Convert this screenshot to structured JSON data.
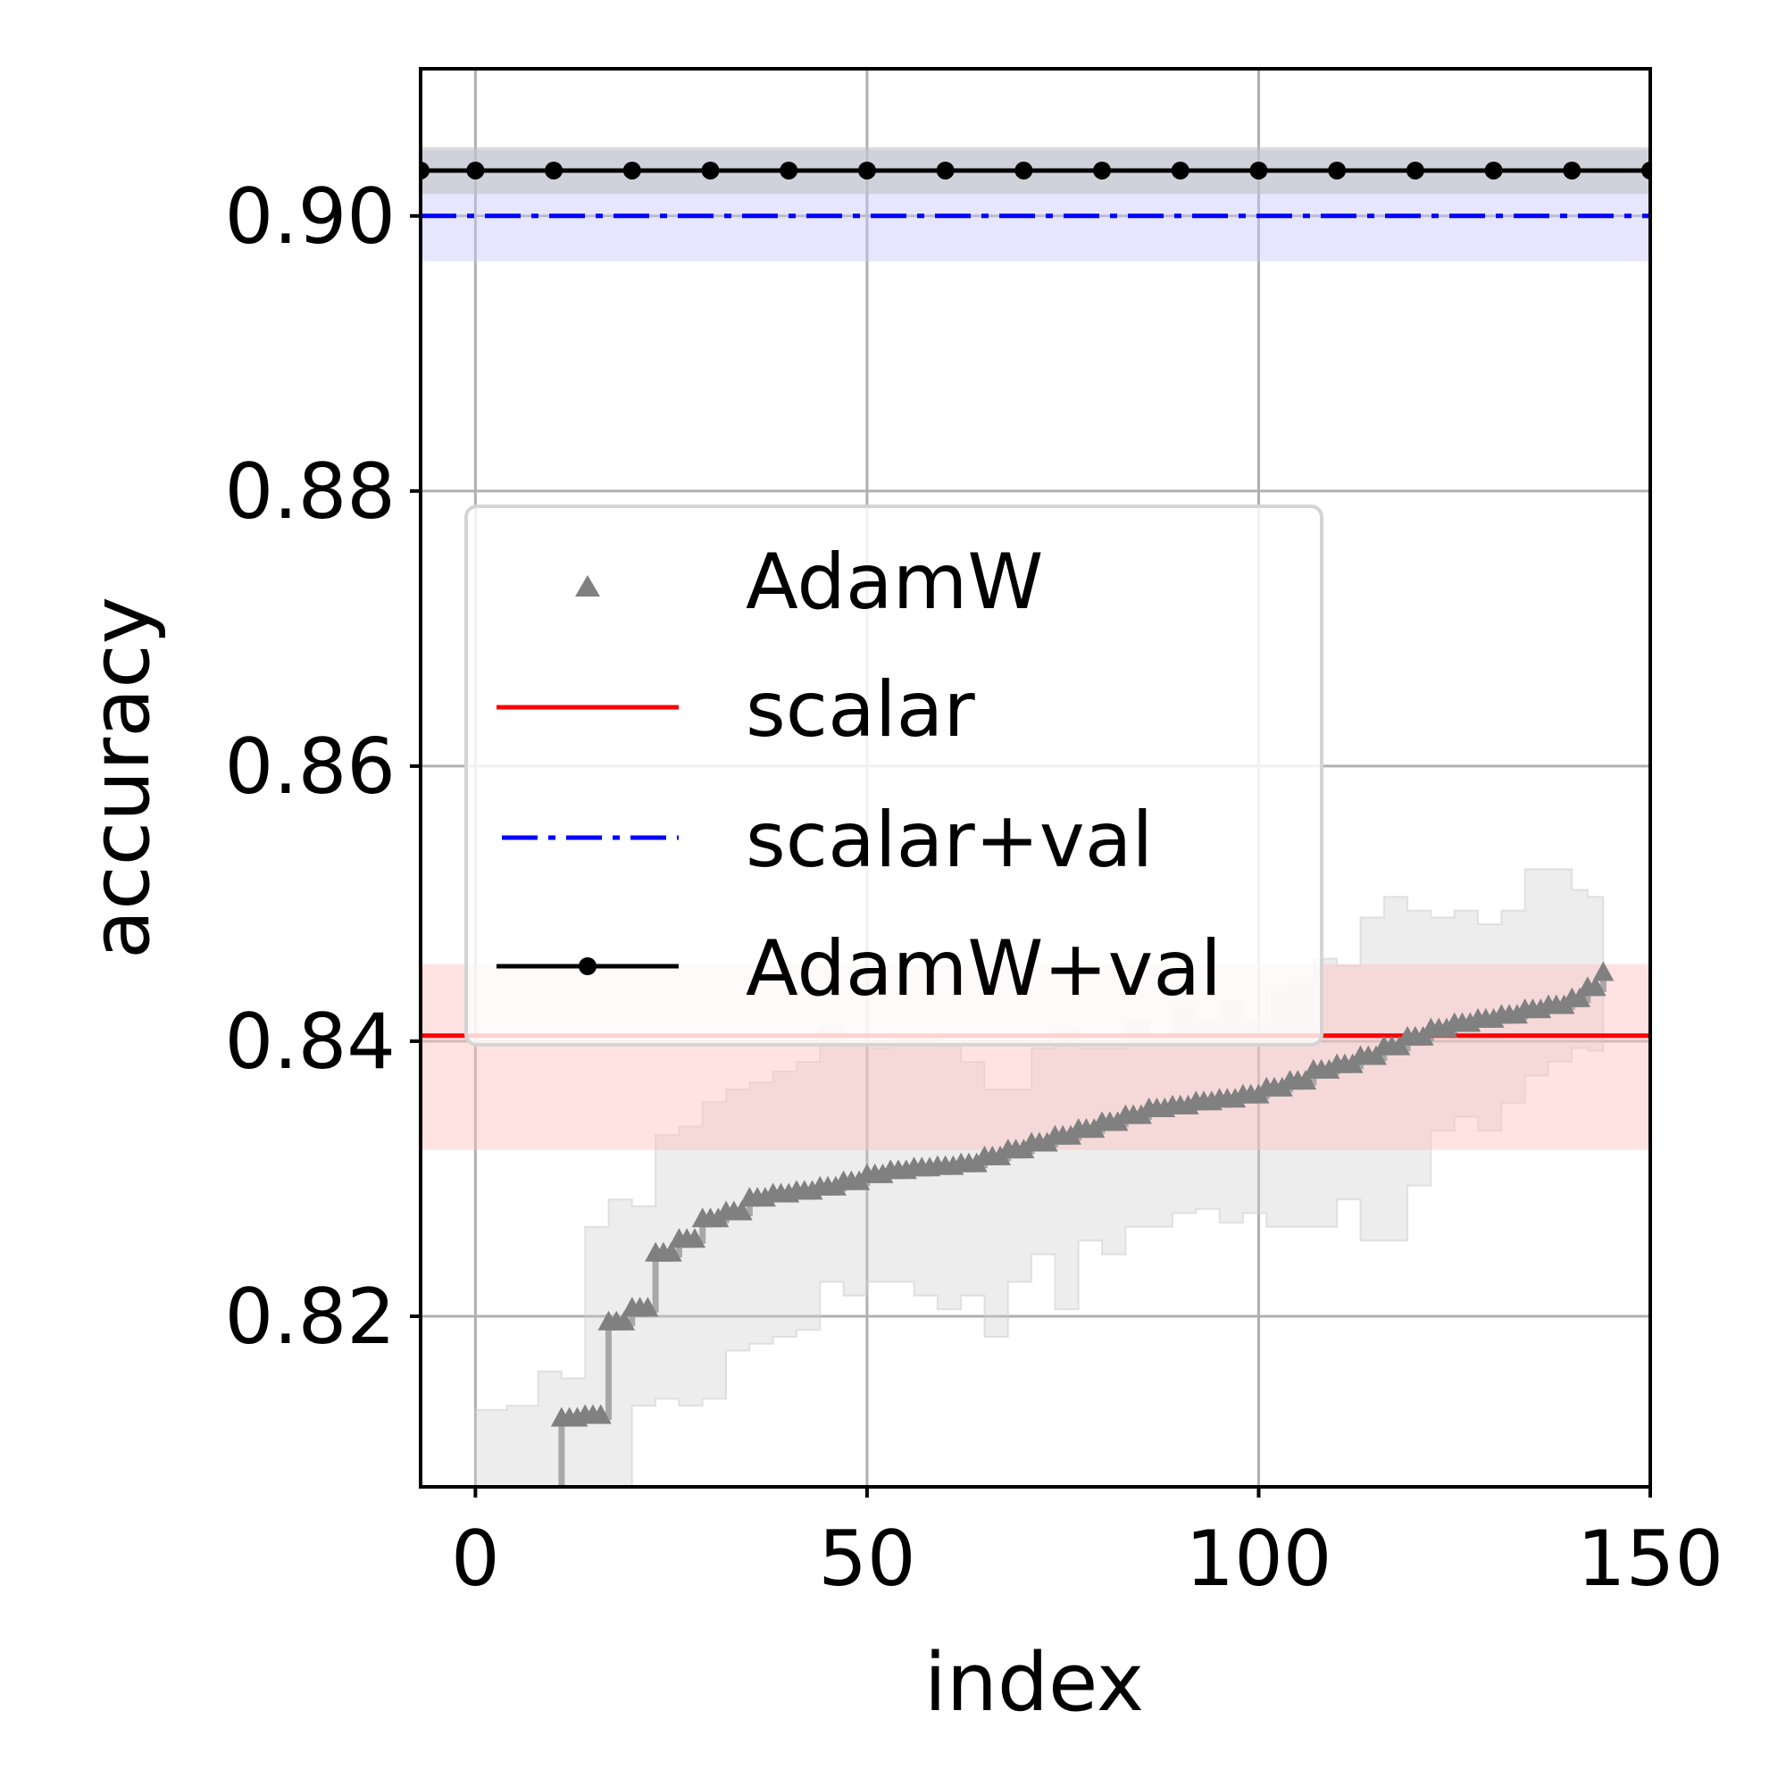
{
  "chart_data": {
    "type": "line",
    "xlabel": "index",
    "ylabel": "accuracy",
    "xlim": [
      -7,
      150
    ],
    "ylim": [
      0.8076,
      0.9107
    ],
    "xticks": [
      0,
      50,
      100,
      150
    ],
    "yticks": [
      0.82,
      0.84,
      0.86,
      0.88,
      0.9
    ],
    "xtick_labels": [
      "0",
      "50",
      "100",
      "150"
    ],
    "ytick_labels": [
      "0.82",
      "0.84",
      "0.86",
      "0.88",
      "0.90"
    ],
    "grid": true,
    "legend_position": "center-left",
    "series": [
      {
        "name": "AdamW",
        "kind": "markers-triangle",
        "color": "#808080",
        "band_color": "#cccccc",
        "x": [
          0,
          4,
          8,
          11,
          14,
          17,
          20,
          23,
          26,
          29,
          32,
          35,
          38,
          41,
          44,
          47,
          50,
          53,
          56,
          59,
          62,
          65,
          68,
          71,
          74,
          77,
          80,
          83,
          86,
          89,
          92,
          95,
          98,
          101,
          104,
          107,
          110,
          113,
          116,
          119,
          122,
          125,
          128,
          131,
          134,
          137,
          140,
          142,
          144
        ],
        "values": [
          0.806,
          0.8062,
          0.8065,
          0.8125,
          0.8127,
          0.8195,
          0.8205,
          0.8245,
          0.8255,
          0.827,
          0.8275,
          0.8285,
          0.8288,
          0.829,
          0.8293,
          0.8297,
          0.8302,
          0.8305,
          0.8307,
          0.8308,
          0.831,
          0.8315,
          0.832,
          0.8325,
          0.833,
          0.8335,
          0.834,
          0.8345,
          0.835,
          0.8352,
          0.8355,
          0.8357,
          0.836,
          0.8365,
          0.837,
          0.8378,
          0.8382,
          0.8388,
          0.8395,
          0.8402,
          0.8408,
          0.8412,
          0.8415,
          0.8418,
          0.8422,
          0.8425,
          0.843,
          0.8438,
          0.8449
        ],
        "upper": [
          0.8132,
          0.8135,
          0.816,
          0.8155,
          0.8265,
          0.8285,
          0.828,
          0.8332,
          0.8338,
          0.8356,
          0.8365,
          0.837,
          0.8378,
          0.8385,
          0.841,
          0.84,
          0.8395,
          0.8405,
          0.8405,
          0.84,
          0.8385,
          0.8365,
          0.8365,
          0.8395,
          0.841,
          0.8395,
          0.8395,
          0.8415,
          0.8405,
          0.8425,
          0.8415,
          0.843,
          0.8415,
          0.844,
          0.8445,
          0.846,
          0.8455,
          0.849,
          0.8505,
          0.8495,
          0.849,
          0.8495,
          0.8485,
          0.8495,
          0.8525,
          0.8525,
          0.851,
          0.8505,
          0.8505
        ],
        "lower": [
          0.7985,
          0.7988,
          0.799,
          0.7995,
          0.7998,
          0.8075,
          0.8135,
          0.814,
          0.8135,
          0.814,
          0.8175,
          0.818,
          0.8185,
          0.819,
          0.8225,
          0.8215,
          0.8225,
          0.8225,
          0.8215,
          0.8205,
          0.8215,
          0.8185,
          0.8225,
          0.8245,
          0.8205,
          0.8255,
          0.8245,
          0.8265,
          0.8265,
          0.8275,
          0.8278,
          0.8268,
          0.8275,
          0.8265,
          0.8265,
          0.8265,
          0.8285,
          0.8255,
          0.8255,
          0.8295,
          0.8335,
          0.8345,
          0.8335,
          0.8355,
          0.8375,
          0.8385,
          0.8395,
          0.8393,
          0.8392
        ]
      },
      {
        "name": "scalar",
        "kind": "hline",
        "color": "#ff0000",
        "band_color": "#ffc0c0",
        "value": 0.8404,
        "band": [
          0.8321,
          0.8456
        ]
      },
      {
        "name": "scalar+val",
        "kind": "hline-dashdot",
        "color": "#0000ff",
        "band_color": "#c8c8ff",
        "value": 0.9,
        "band": [
          0.8967,
          0.9048
        ]
      },
      {
        "name": "AdamW+val",
        "kind": "hline-dots",
        "color": "#000000",
        "band_color": "#c0c0c0",
        "value": 0.9033,
        "band": [
          0.9016,
          0.905
        ],
        "marker_x": [
          -7,
          0,
          10,
          20,
          30,
          40,
          50,
          60,
          70,
          80,
          90,
          100,
          110,
          120,
          130,
          140,
          150
        ]
      }
    ]
  }
}
